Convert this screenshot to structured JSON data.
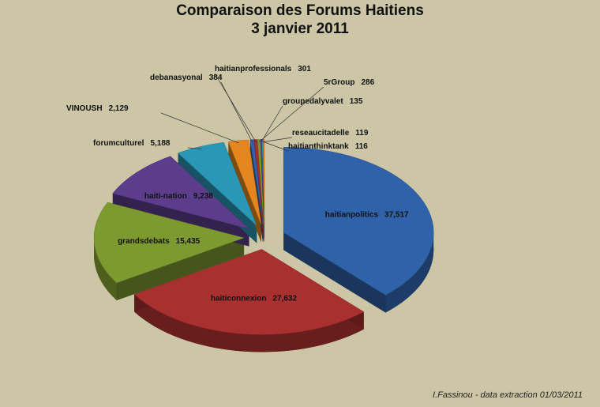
{
  "chart_data": {
    "type": "pie3d",
    "title": "Comparaison des Forums Haitiens",
    "subtitle": "3 janvier 2011",
    "footnote": "I.Fassinou  - data extraction 01/03/2011",
    "categories": [
      "haitianpolitics",
      "haiticonnexion",
      "grandsdebats",
      "haiti-nation",
      "forumculturel",
      "VINOUSH",
      "debanasyonal",
      "haitianprofessionals",
      "5rGroup",
      "groupedalyvalet",
      "reseaucitadelle",
      "haitianthinktank"
    ],
    "values": [
      37517,
      27632,
      15435,
      9238,
      5188,
      2129,
      384,
      301,
      286,
      135,
      119,
      116
    ],
    "value_labels": [
      "37,517",
      "27,632",
      "15,435",
      "9,238",
      "5,188",
      "2,129",
      "384",
      "301",
      "286",
      "135",
      "119",
      "116"
    ],
    "colors": [
      "#2f62a8",
      "#a8302e",
      "#7d9a31",
      "#5b3d8c",
      "#2a97b6",
      "#e4861d",
      "#2f62a8",
      "#a8302e",
      "#7d9a31",
      "#5b3d8c",
      "#2a97b6",
      "#e4861d"
    ]
  }
}
